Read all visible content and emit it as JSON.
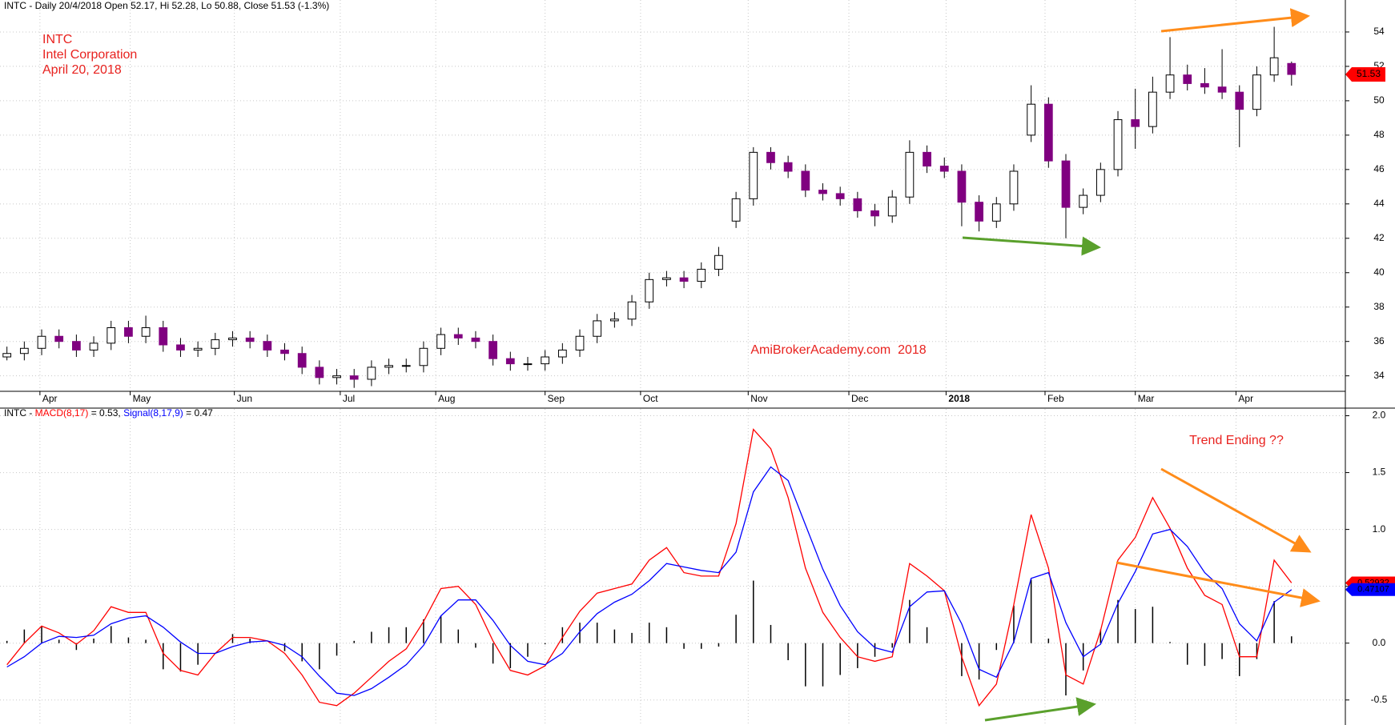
{
  "chart_data": [
    {
      "type": "candlestick",
      "header": "INTC - Daily 20/4/2018 Open 52.17, Hi 52.28, Lo 50.88, Close 51.53 (-1.3%)",
      "symbol": "INTC",
      "company": "Intel Corporation",
      "date": "April 20, 2018",
      "watermark": "AmiBrokerAcademy.com  2018",
      "up_color": "#ffffff",
      "down_color": "#800080",
      "open": [
        35.1,
        35.3,
        35.6,
        36.3,
        36.0,
        35.5,
        35.9,
        36.8,
        36.3,
        36.8,
        35.8,
        35.5,
        35.6,
        36.1,
        36.2,
        36.0,
        35.5,
        35.3,
        34.5,
        33.9,
        34.0,
        33.8,
        34.5,
        34.6,
        34.6,
        35.6,
        36.4,
        36.2,
        36.0,
        35.0,
        34.7,
        34.7,
        35.1,
        35.5,
        36.3,
        37.2,
        37.3,
        38.3,
        39.6,
        39.7,
        39.5,
        40.2,
        43.0,
        44.3,
        47.0,
        46.4,
        45.9,
        44.8,
        44.6,
        44.3,
        43.6,
        43.3,
        44.4,
        47.0,
        46.2,
        45.9,
        44.1,
        43.0,
        44.0,
        48.0,
        49.8,
        46.5,
        43.8,
        44.5,
        46.0,
        48.9,
        48.5,
        50.5,
        51.5,
        51.0,
        50.8,
        50.5,
        49.5,
        51.5,
        52.17
      ],
      "high": [
        35.7,
        36.0,
        36.7,
        36.7,
        36.4,
        36.3,
        37.2,
        37.2,
        37.5,
        37.2,
        36.2,
        36.0,
        36.5,
        36.6,
        36.6,
        36.4,
        35.9,
        35.7,
        34.9,
        34.4,
        34.4,
        34.9,
        35.0,
        35.0,
        36.0,
        36.8,
        36.8,
        36.6,
        36.4,
        35.4,
        35.1,
        35.5,
        35.9,
        36.7,
        37.6,
        37.7,
        38.7,
        40.0,
        40.1,
        40.1,
        40.6,
        41.5,
        44.7,
        47.3,
        47.3,
        46.8,
        46.3,
        45.2,
        45.0,
        44.7,
        44.0,
        44.8,
        47.7,
        47.4,
        46.7,
        46.3,
        44.5,
        44.4,
        46.3,
        50.9,
        50.2,
        46.9,
        44.9,
        46.4,
        49.4,
        50.7,
        51.4,
        53.7,
        52.1,
        51.9,
        53.0,
        50.9,
        52.0,
        54.3,
        52.28
      ],
      "low": [
        34.9,
        34.9,
        35.2,
        35.6,
        35.1,
        35.1,
        35.5,
        35.9,
        35.9,
        35.4,
        35.1,
        35.1,
        35.2,
        35.7,
        35.6,
        35.1,
        34.9,
        34.1,
        33.5,
        33.5,
        33.3,
        33.4,
        34.1,
        34.2,
        34.2,
        35.2,
        35.8,
        35.6,
        34.6,
        34.3,
        34.3,
        34.3,
        34.7,
        35.1,
        35.9,
        36.8,
        36.9,
        37.9,
        39.2,
        39.1,
        39.1,
        39.8,
        42.6,
        43.9,
        46.0,
        45.5,
        44.4,
        44.2,
        43.9,
        43.2,
        42.7,
        42.9,
        44.0,
        45.8,
        45.5,
        42.7,
        42.4,
        42.6,
        43.6,
        47.6,
        46.1,
        42.0,
        43.4,
        44.1,
        45.6,
        47.2,
        48.1,
        50.1,
        50.6,
        50.4,
        50.1,
        47.3,
        49.1,
        51.1,
        50.88
      ],
      "close": [
        35.3,
        35.6,
        36.3,
        36.0,
        35.5,
        35.9,
        36.8,
        36.3,
        36.8,
        35.8,
        35.5,
        35.6,
        36.1,
        36.2,
        36.0,
        35.5,
        35.3,
        34.5,
        33.9,
        34.0,
        33.8,
        34.5,
        34.6,
        34.6,
        35.6,
        36.4,
        36.2,
        36.0,
        35.0,
        34.7,
        34.7,
        35.1,
        35.5,
        36.3,
        37.2,
        37.3,
        38.3,
        39.6,
        39.7,
        39.5,
        40.2,
        41.0,
        44.3,
        47.0,
        46.4,
        45.9,
        44.8,
        44.6,
        44.3,
        43.6,
        43.3,
        44.4,
        47.0,
        46.2,
        45.9,
        44.1,
        43.0,
        44.0,
        45.9,
        49.8,
        46.5,
        43.8,
        44.5,
        46.0,
        48.9,
        48.5,
        50.5,
        51.5,
        51.0,
        50.8,
        50.5,
        49.5,
        51.5,
        52.5,
        51.53
      ],
      "last_price": 51.53,
      "last_color": "#ff0000",
      "ylim": [
        33.1,
        55.86
      ],
      "yticks": [
        34,
        36,
        38,
        40,
        42,
        44,
        46,
        48,
        50,
        52,
        54
      ],
      "grid": true,
      "xlim": [
        -0.4,
        77.1
      ],
      "xticks": [
        {
          "value": 1.9,
          "label": "Apr"
        },
        {
          "value": 7.1,
          "label": "May"
        },
        {
          "value": 13.1,
          "label": "Jun"
        },
        {
          "value": 19.2,
          "label": "Jul"
        },
        {
          "value": 24.7,
          "label": "Aug"
        },
        {
          "value": 31.0,
          "label": "Sep"
        },
        {
          "value": 36.5,
          "label": "Oct"
        },
        {
          "value": 42.7,
          "label": "Nov"
        },
        {
          "value": 48.5,
          "label": "Dec"
        },
        {
          "value": 54.1,
          "label": "2018",
          "bold": true
        },
        {
          "value": 59.8,
          "label": "Feb"
        },
        {
          "value": 65.0,
          "label": "Mar"
        },
        {
          "value": 70.8,
          "label": "Apr"
        }
      ]
    },
    {
      "type": "macd",
      "header": [
        "INTC - ",
        "MACD(8,17)",
        " = 0.53, ",
        "Signal(8,17,9)",
        " = 0.47"
      ],
      "annotation": "Trend Ending ??",
      "series": [
        {
          "name": "MACD",
          "color": "#ff0000",
          "values": [
            -0.19,
            0.0,
            0.15,
            0.09,
            -0.01,
            0.11,
            0.32,
            0.27,
            0.27,
            -0.09,
            -0.24,
            -0.28,
            -0.09,
            0.05,
            0.05,
            0.02,
            -0.09,
            -0.28,
            -0.52,
            -0.55,
            -0.44,
            -0.3,
            -0.16,
            -0.05,
            0.19,
            0.48,
            0.5,
            0.34,
            0.02,
            -0.24,
            -0.28,
            -0.2,
            0.05,
            0.28,
            0.44,
            0.48,
            0.52,
            0.73,
            0.84,
            0.62,
            0.59,
            0.59,
            1.05,
            1.88,
            1.71,
            1.28,
            0.66,
            0.27,
            0.05,
            -0.12,
            -0.16,
            -0.12,
            0.7,
            0.59,
            0.46,
            -0.12,
            -0.55,
            -0.36,
            0.34,
            1.13,
            0.66,
            -0.28,
            -0.36,
            0.11,
            0.73,
            0.93,
            1.28,
            1.01,
            0.66,
            0.42,
            0.34,
            -0.12,
            -0.12,
            0.73,
            0.53
          ],
          "last": 0.52932
        },
        {
          "name": "Signal",
          "color": "#0000ff",
          "values": [
            -0.21,
            -0.12,
            0.0,
            0.06,
            0.05,
            0.07,
            0.17,
            0.22,
            0.24,
            0.14,
            0.01,
            -0.09,
            -0.09,
            -0.03,
            0.01,
            0.02,
            -0.02,
            -0.12,
            -0.29,
            -0.44,
            -0.46,
            -0.4,
            -0.3,
            -0.19,
            -0.02,
            0.24,
            0.38,
            0.38,
            0.2,
            -0.02,
            -0.16,
            -0.19,
            -0.09,
            0.1,
            0.26,
            0.36,
            0.43,
            0.55,
            0.7,
            0.67,
            0.64,
            0.62,
            0.8,
            1.33,
            1.55,
            1.43,
            1.04,
            0.65,
            0.33,
            0.1,
            -0.04,
            -0.08,
            0.32,
            0.45,
            0.46,
            0.17,
            -0.23,
            -0.3,
            0.01,
            0.57,
            0.62,
            0.18,
            -0.12,
            -0.01,
            0.35,
            0.63,
            0.96,
            1.0,
            0.85,
            0.62,
            0.48,
            0.17,
            0.02,
            0.36,
            0.47
          ],
          "last": 0.47107
        }
      ],
      "histogram": {
        "color": "#000000",
        "values": [
          0.02,
          0.12,
          0.15,
          0.03,
          -0.06,
          0.04,
          0.15,
          0.05,
          0.03,
          -0.23,
          -0.25,
          -0.19,
          0.0,
          0.08,
          0.04,
          0.0,
          -0.07,
          -0.16,
          -0.23,
          -0.11,
          0.02,
          0.1,
          0.14,
          0.14,
          0.21,
          0.24,
          0.12,
          -0.04,
          -0.18,
          -0.22,
          -0.12,
          -0.01,
          0.14,
          0.18,
          0.18,
          0.12,
          0.09,
          0.18,
          0.14,
          -0.05,
          -0.05,
          -0.03,
          0.25,
          0.55,
          0.16,
          -0.15,
          -0.38,
          -0.38,
          -0.28,
          -0.22,
          -0.12,
          -0.04,
          0.38,
          0.14,
          0.0,
          -0.29,
          -0.32,
          -0.06,
          0.33,
          0.56,
          0.04,
          -0.46,
          -0.24,
          0.12,
          0.38,
          0.3,
          0.32,
          0.01,
          -0.19,
          -0.2,
          -0.14,
          -0.29,
          -0.14,
          0.37,
          0.06
        ]
      },
      "ylim": [
        -0.72,
        2.06
      ],
      "yticks": [
        {
          "value": -0.5,
          "label": "-0.5"
        },
        {
          "value": 0,
          "label": "0.0"
        },
        {
          "value": 0.5,
          "label": "0.5"
        },
        {
          "value": 1,
          "label": "1.0"
        },
        {
          "value": 1.5,
          "label": "1.5"
        },
        {
          "value": 2,
          "label": "2.0"
        }
      ],
      "grid": true
    }
  ]
}
